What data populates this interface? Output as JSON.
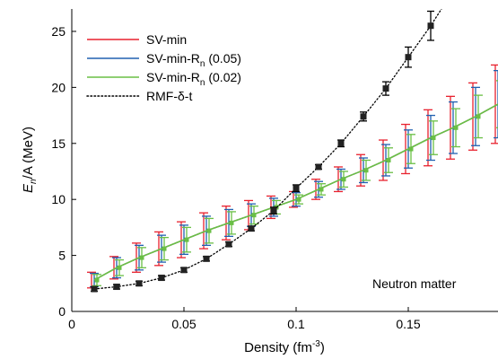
{
  "chart_data": {
    "type": "line",
    "xlabel": "Density (fm",
    "xlabel_sup": "-3",
    "xlabel_close": ")",
    "ylabel_E": "E",
    "ylabel_sub": "n",
    "ylabel_rest": "/A (MeV)",
    "xlim": [
      0,
      0.19
    ],
    "ylim": [
      0,
      27
    ],
    "x_ticks": [
      0,
      0.05,
      0.1,
      0.15
    ],
    "x_tick_labels": [
      "0",
      "0.05",
      "0.1",
      "0.15"
    ],
    "y_ticks": [
      0,
      5,
      10,
      15,
      20,
      25
    ],
    "y_tick_labels": [
      "0",
      "5",
      "10",
      "15",
      "20",
      "25"
    ],
    "annotation": "Neutron matter",
    "legend": {
      "position": "top-left",
      "entries": [
        {
          "label": "SV-min",
          "color": "#e8212e",
          "style": "solid"
        },
        {
          "label": "SV-min-R",
          "sub": "n",
          "suffix": " (0.05)",
          "color": "#2060b0",
          "style": "solid"
        },
        {
          "label": "SV-min-R",
          "sub": "n",
          "suffix": " (0.02)",
          "color": "#6abf45",
          "style": "solid"
        },
        {
          "label": "RMF-δ-t",
          "color": "#000000",
          "style": "dotted"
        }
      ]
    },
    "series": [
      {
        "name": "SV-min",
        "color": "#e8212e",
        "x": [
          0.01,
          0.02,
          0.03,
          0.04,
          0.05,
          0.06,
          0.07,
          0.08,
          0.09,
          0.1,
          0.11,
          0.12,
          0.13,
          0.14,
          0.15,
          0.16,
          0.17,
          0.18,
          0.19
        ],
        "y": [
          2.8,
          3.9,
          4.8,
          5.6,
          6.4,
          7.2,
          7.9,
          8.6,
          9.3,
          10.0,
          10.9,
          11.8,
          12.6,
          13.5,
          14.5,
          15.5,
          16.4,
          17.4,
          18.5
        ],
        "err": [
          0.7,
          1.0,
          1.3,
          1.5,
          1.6,
          1.6,
          1.5,
          1.3,
          1.0,
          0.7,
          0.9,
          1.1,
          1.4,
          1.8,
          2.2,
          2.5,
          2.8,
          3.0,
          3.5
        ]
      },
      {
        "name": "SV-min-Rn (0.05)",
        "color": "#2060b0",
        "x": [
          0.01,
          0.02,
          0.03,
          0.04,
          0.05,
          0.06,
          0.07,
          0.08,
          0.09,
          0.1,
          0.11,
          0.12,
          0.13,
          0.14,
          0.15,
          0.16,
          0.17,
          0.18,
          0.19
        ],
        "y": [
          2.8,
          3.9,
          4.8,
          5.6,
          6.4,
          7.2,
          7.9,
          8.6,
          9.3,
          10.0,
          10.9,
          11.8,
          12.6,
          13.5,
          14.5,
          15.5,
          16.4,
          17.4,
          18.5
        ],
        "err": [
          0.6,
          0.9,
          1.1,
          1.2,
          1.3,
          1.3,
          1.2,
          1.0,
          0.8,
          0.6,
          0.7,
          0.9,
          1.1,
          1.4,
          1.7,
          2.0,
          2.3,
          2.6,
          3.0
        ]
      },
      {
        "name": "SV-min-Rn (0.02)",
        "color": "#6abf45",
        "x": [
          0.01,
          0.02,
          0.03,
          0.04,
          0.05,
          0.06,
          0.07,
          0.08,
          0.09,
          0.1,
          0.11,
          0.12,
          0.13,
          0.14,
          0.15,
          0.16,
          0.17,
          0.18,
          0.19
        ],
        "y": [
          2.8,
          3.9,
          4.8,
          5.6,
          6.4,
          7.2,
          7.9,
          8.6,
          9.3,
          10.0,
          10.9,
          11.8,
          12.6,
          13.5,
          14.5,
          15.5,
          16.4,
          17.4,
          18.5
        ],
        "err": [
          0.5,
          0.7,
          0.9,
          1.0,
          1.1,
          1.1,
          1.0,
          0.8,
          0.6,
          0.4,
          0.5,
          0.7,
          0.9,
          1.1,
          1.3,
          1.5,
          1.7,
          1.9,
          2.1
        ]
      },
      {
        "name": "RMF-δ-t",
        "color": "#000000",
        "style": "dotted",
        "x": [
          0.01,
          0.02,
          0.03,
          0.04,
          0.05,
          0.06,
          0.07,
          0.08,
          0.09,
          0.1,
          0.11,
          0.12,
          0.13,
          0.14,
          0.15,
          0.16
        ],
        "y": [
          2.0,
          2.2,
          2.5,
          3.0,
          3.7,
          4.7,
          6.0,
          7.4,
          9.0,
          11.0,
          12.9,
          15.0,
          17.4,
          19.9,
          22.7,
          25.5
        ],
        "err": [
          0.2,
          0.2,
          0.2,
          0.2,
          0.2,
          0.2,
          0.2,
          0.2,
          0.3,
          0.3,
          0.2,
          0.3,
          0.4,
          0.6,
          0.9,
          1.3
        ]
      }
    ]
  }
}
